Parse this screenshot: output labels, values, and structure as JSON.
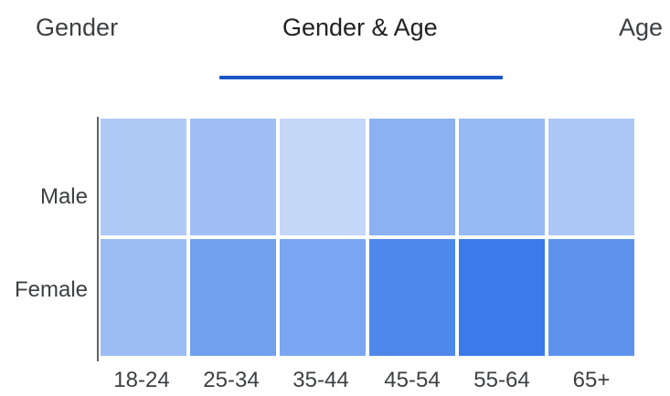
{
  "tabs": [
    {
      "label": "Gender",
      "selected": false
    },
    {
      "label": "Gender & Age",
      "selected": true
    },
    {
      "label": "Age",
      "selected": false
    }
  ],
  "colors": {
    "accent": "#1a56c8",
    "heat_low": "#dce7fc",
    "heat_high": "#3b7be9"
  },
  "chart_data": {
    "type": "heatmap",
    "rows": [
      "Male",
      "Female"
    ],
    "columns": [
      "18-24",
      "25-34",
      "35-44",
      "45-54",
      "55-64",
      "65+"
    ],
    "values": [
      [
        0.28,
        0.38,
        0.15,
        0.5,
        0.42,
        0.3
      ],
      [
        0.4,
        0.66,
        0.6,
        0.88,
        1.0,
        0.78
      ]
    ],
    "value_scale": "relative intensity (0-1), shown by cell shade",
    "legend": false
  }
}
